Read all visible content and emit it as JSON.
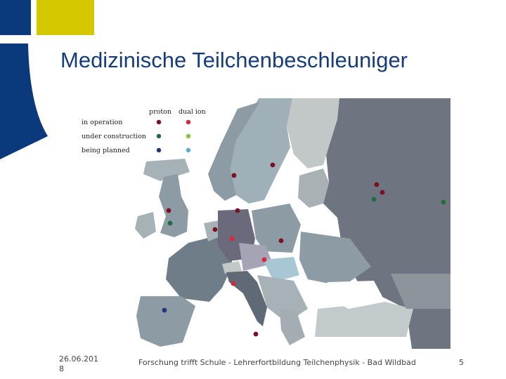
{
  "slide": {
    "title": "Medizinische Teilchenbeschleuniger",
    "footer_date": "26.06.2018",
    "footer_text": "Forschung trifft Schule - Lehrerfortbildung Teilchenphysik - Bad Wildbad",
    "page_number": "5"
  },
  "colors": {
    "brand_blue": "#0b3a7c",
    "brand_yellow": "#d4c700",
    "proton_in_operation": "#7a1020",
    "proton_under_construction": "#1f6b3a",
    "proton_being_planned": "#22357a",
    "dual_ion_in_operation": "#d8263a",
    "dual_ion_under_construction": "#8ac43a",
    "dual_ion_being_planned": "#5aaad6"
  },
  "map": {
    "legend": {
      "columns": [
        "proton",
        "dual ion"
      ],
      "rows": [
        "in operation",
        "under construction",
        "being planned"
      ]
    },
    "facility_markers": [
      {
        "type": "proton",
        "status": "in operation",
        "location": "Norway"
      },
      {
        "type": "proton",
        "status": "in operation",
        "location": "Sweden"
      },
      {
        "type": "proton",
        "status": "in operation",
        "location": "Russia"
      },
      {
        "type": "proton",
        "status": "in operation",
        "location": "Russia"
      },
      {
        "type": "proton",
        "status": "under construction",
        "location": "Russia"
      },
      {
        "type": "proton",
        "status": "under construction",
        "location": "Russia"
      },
      {
        "type": "proton",
        "status": "in operation",
        "location": "Denmark"
      },
      {
        "type": "proton",
        "status": "in operation",
        "location": "UK"
      },
      {
        "type": "proton",
        "status": "under construction",
        "location": "UK"
      },
      {
        "type": "proton",
        "status": "in operation",
        "location": "Belgium"
      },
      {
        "type": "dual ion",
        "status": "in operation",
        "location": "Germany"
      },
      {
        "type": "proton",
        "status": "in operation",
        "location": "Poland"
      },
      {
        "type": "dual ion",
        "status": "in operation",
        "location": "Austria"
      },
      {
        "type": "dual ion",
        "status": "in operation",
        "location": "Italy"
      },
      {
        "type": "proton",
        "status": "being planned",
        "location": "Spain"
      },
      {
        "type": "proton",
        "status": "in operation",
        "location": "Italy"
      }
    ]
  }
}
